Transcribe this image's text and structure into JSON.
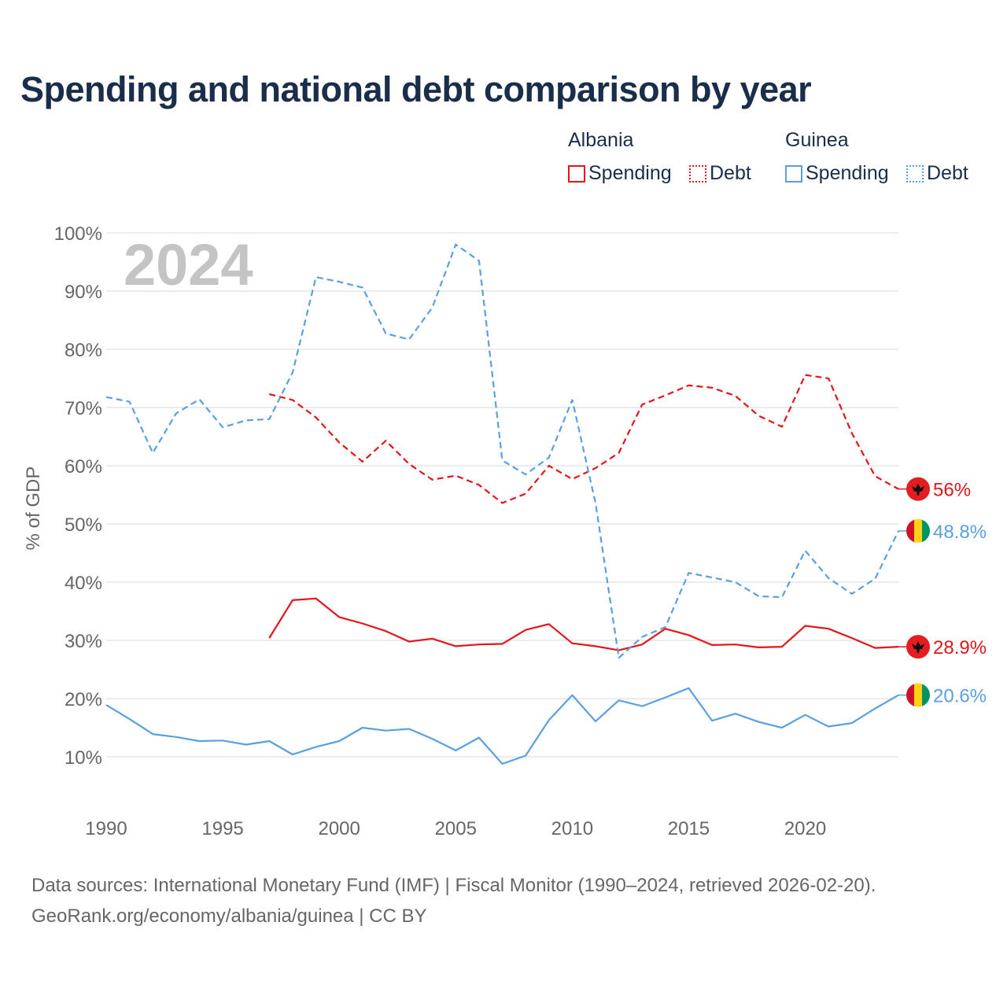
{
  "title": "Spending and national debt comparison by year",
  "legend": {
    "groups": [
      {
        "country": "Albania",
        "color": "#e3151a",
        "items": [
          {
            "label": "Spending",
            "style": "solid"
          },
          {
            "label": "Debt",
            "style": "dotted"
          }
        ]
      },
      {
        "country": "Guinea",
        "color": "#5aa0e0",
        "items": [
          {
            "label": "Spending",
            "style": "solid"
          },
          {
            "label": "Debt",
            "style": "dotted"
          }
        ]
      }
    ]
  },
  "year_watermark": "2024",
  "source": {
    "line1": "Data sources: International Monetary Fund (IMF) | Fiscal Monitor (1990–2024, retrieved 2026-02-20).",
    "line2": "GeoRank.org/economy/albania/guinea | CC BY"
  },
  "chart_data": {
    "type": "line",
    "ylabel": "% of GDP",
    "xlabel": "",
    "xlim": [
      1990,
      2024
    ],
    "ylim": [
      0,
      100
    ],
    "x_ticks": [
      "1990",
      "1995",
      "2000",
      "2005",
      "2010",
      "2015",
      "2020"
    ],
    "y_ticks": [
      "10%",
      "20%",
      "30%",
      "40%",
      "50%",
      "60%",
      "70%",
      "80%",
      "90%",
      "100%"
    ],
    "grid": true,
    "series": [
      {
        "name": "Albania Debt",
        "country": "Albania",
        "metric": "Debt",
        "color": "#e3151a",
        "dash": "dashed",
        "end_label": "56%",
        "flag": "albania",
        "points": [
          [
            1997,
            72.3
          ],
          [
            1998,
            71.3
          ],
          [
            1999,
            68.3
          ],
          [
            2000,
            64
          ],
          [
            2001,
            60.7
          ],
          [
            2002,
            64.3
          ],
          [
            2003,
            60.3
          ],
          [
            2004,
            57.6
          ],
          [
            2005,
            58.3
          ],
          [
            2006,
            56.7
          ],
          [
            2007,
            53.6
          ],
          [
            2008,
            55.2
          ],
          [
            2009,
            60
          ],
          [
            2010,
            57.7
          ],
          [
            2011,
            59.6
          ],
          [
            2012,
            62.2
          ],
          [
            2013,
            70.5
          ],
          [
            2014,
            72.1
          ],
          [
            2015,
            73.8
          ],
          [
            2016,
            73.4
          ],
          [
            2017,
            72
          ],
          [
            2018,
            68.6
          ],
          [
            2019,
            66.7
          ],
          [
            2020,
            75.6
          ],
          [
            2021,
            75
          ],
          [
            2022,
            65.6
          ],
          [
            2023,
            58.2
          ],
          [
            2024,
            56
          ]
        ]
      },
      {
        "name": "Albania Spending",
        "country": "Albania",
        "metric": "Spending",
        "color": "#e3151a",
        "dash": "solid",
        "end_label": "28.9%",
        "flag": "albania",
        "points": [
          [
            1997,
            30.4
          ],
          [
            1998,
            36.9
          ],
          [
            1999,
            37.2
          ],
          [
            2000,
            34
          ],
          [
            2001,
            32.9
          ],
          [
            2002,
            31.6
          ],
          [
            2003,
            29.8
          ],
          [
            2004,
            30.3
          ],
          [
            2005,
            29
          ],
          [
            2006,
            29.3
          ],
          [
            2007,
            29.4
          ],
          [
            2008,
            31.8
          ],
          [
            2009,
            32.8
          ],
          [
            2010,
            29.5
          ],
          [
            2011,
            29
          ],
          [
            2012,
            28.3
          ],
          [
            2013,
            29.3
          ],
          [
            2014,
            32
          ],
          [
            2015,
            30.9
          ],
          [
            2016,
            29.2
          ],
          [
            2017,
            29.3
          ],
          [
            2018,
            28.8
          ],
          [
            2019,
            28.9
          ],
          [
            2020,
            32.5
          ],
          [
            2021,
            32
          ],
          [
            2022,
            30.4
          ],
          [
            2023,
            28.7
          ],
          [
            2024,
            28.9
          ]
        ]
      },
      {
        "name": "Guinea Debt",
        "country": "Guinea",
        "metric": "Debt",
        "color": "#5aa0e0",
        "dash": "dashed",
        "end_label": "48.8%",
        "flag": "guinea",
        "points": [
          [
            1990,
            71.8
          ],
          [
            1991,
            71
          ],
          [
            1992,
            62.2
          ],
          [
            1993,
            69
          ],
          [
            1994,
            71.4
          ],
          [
            1995,
            66.6
          ],
          [
            1996,
            67.8
          ],
          [
            1997,
            68
          ],
          [
            1998,
            76
          ],
          [
            1999,
            92.4
          ],
          [
            2000,
            91.6
          ],
          [
            2001,
            90.6
          ],
          [
            2002,
            82.7
          ],
          [
            2003,
            81.7
          ],
          [
            2004,
            87.2
          ],
          [
            2005,
            98
          ],
          [
            2006,
            95.2
          ],
          [
            2007,
            60.9
          ],
          [
            2008,
            58.5
          ],
          [
            2009,
            61.4
          ],
          [
            2010,
            71.3
          ],
          [
            2011,
            53.6
          ],
          [
            2012,
            27
          ],
          [
            2013,
            30.6
          ],
          [
            2014,
            32.3
          ],
          [
            2015,
            41.6
          ],
          [
            2016,
            40.8
          ],
          [
            2017,
            40
          ],
          [
            2018,
            37.6
          ],
          [
            2019,
            37.4
          ],
          [
            2020,
            45.4
          ],
          [
            2021,
            40.7
          ],
          [
            2022,
            38
          ],
          [
            2023,
            40.6
          ],
          [
            2024,
            48.8
          ]
        ]
      },
      {
        "name": "Guinea Spending",
        "country": "Guinea",
        "metric": "Spending",
        "color": "#5aa0e0",
        "dash": "solid",
        "end_label": "20.6%",
        "flag": "guinea",
        "points": [
          [
            1990,
            18.9
          ],
          [
            1991,
            16.5
          ],
          [
            1992,
            13.9
          ],
          [
            1993,
            13.4
          ],
          [
            1994,
            12.7
          ],
          [
            1995,
            12.8
          ],
          [
            1996,
            12.1
          ],
          [
            1997,
            12.7
          ],
          [
            1998,
            10.4
          ],
          [
            1999,
            11.7
          ],
          [
            2000,
            12.7
          ],
          [
            2001,
            15
          ],
          [
            2002,
            14.5
          ],
          [
            2003,
            14.8
          ],
          [
            2004,
            13.1
          ],
          [
            2005,
            11.1
          ],
          [
            2006,
            13.3
          ],
          [
            2007,
            8.8
          ],
          [
            2008,
            10.2
          ],
          [
            2009,
            16.3
          ],
          [
            2010,
            20.6
          ],
          [
            2011,
            16.1
          ],
          [
            2012,
            19.7
          ],
          [
            2013,
            18.7
          ],
          [
            2014,
            20.2
          ],
          [
            2015,
            21.8
          ],
          [
            2016,
            16.2
          ],
          [
            2017,
            17.4
          ],
          [
            2018,
            16
          ],
          [
            2019,
            15
          ],
          [
            2020,
            17.2
          ],
          [
            2021,
            15.2
          ],
          [
            2022,
            15.8
          ],
          [
            2023,
            18.3
          ],
          [
            2024,
            20.6
          ]
        ]
      }
    ]
  }
}
